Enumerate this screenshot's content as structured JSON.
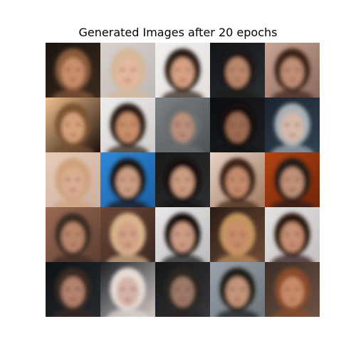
{
  "title": "Generated Images after 20 epochs",
  "grid": {
    "rows": 5,
    "cols": 5,
    "images": [
      {
        "bg": "#1a140f",
        "bg2": "#3a2a1e",
        "skin": "#c98f6c",
        "hair": "#8a5a3a"
      },
      {
        "bg": "#d8d2cf",
        "bg2": "#bfb7b4",
        "skin": "#e4b89d",
        "hair": "#d6b89a"
      },
      {
        "bg": "#f2f0ef",
        "bg2": "#e2dfde",
        "skin": "#d7a083",
        "hair": "#2b1a12"
      },
      {
        "bg": "#121416",
        "bg2": "#2a2f34",
        "skin": "#b9876c",
        "hair": "#1e1714"
      },
      {
        "bg": "#c9a594",
        "bg2": "#8b6a5e",
        "skin": "#c08e73",
        "hair": "#3a2418"
      },
      {
        "bg": "#f1c08f",
        "bg2": "#1b0f0a",
        "skin": "#d6a07a",
        "hair": "#7b5233"
      },
      {
        "bg": "#ededec",
        "bg2": "#cfcccc",
        "skin": "#c98f6c",
        "hair": "#2a1a12"
      },
      {
        "bg": "#7f8386",
        "bg2": "#4d5256",
        "skin": "#b98f7a",
        "hair": "#6c6e70"
      },
      {
        "bg": "#0c0d10",
        "bg2": "#1d1f23",
        "skin": "#9c6a51",
        "hair": "#15100d"
      },
      {
        "bg": "#1a2430",
        "bg2": "#31404f",
        "skin": "#d5b9a7",
        "hair": "#a9b1b6"
      },
      {
        "bg": "#e7cbb7",
        "bg2": "#c9b0a0",
        "skin": "#d9ad91",
        "hair": "#cfa27d"
      },
      {
        "bg": "#2f89d8",
        "bg2": "#1b5fa2",
        "skin": "#cc9d83",
        "hair": "#1a1414"
      },
      {
        "bg": "#181818",
        "bg2": "#2e2e2e",
        "skin": "#cb9b80",
        "hair": "#141010"
      },
      {
        "bg": "#e7d3c5",
        "bg2": "#a17a61",
        "skin": "#c48a6c",
        "hair": "#3a2316"
      },
      {
        "bg": "#b44314",
        "bg2": "#6f2609",
        "skin": "#c09077",
        "hair": "#241a18"
      },
      {
        "bg": "#9a6a53",
        "bg2": "#5e4032",
        "skin": "#b9866a",
        "hair": "#3a2a22"
      },
      {
        "bg": "#6b4637",
        "bg2": "#3b2820",
        "skin": "#d2a186",
        "hair": "#d9b38c"
      },
      {
        "bg": "#e9e7e7",
        "bg2": "#bcbaba",
        "skin": "#cc9b83",
        "hair": "#121010"
      },
      {
        "bg": "#2a1b14",
        "bg2": "#6e4a36",
        "skin": "#c78d6a",
        "hair": "#c4955f"
      },
      {
        "bg": "#e4e1e1",
        "bg2": "#c4c1c1",
        "skin": "#c78f72",
        "hair": "#2a1510"
      },
      {
        "bg": "#0f1114",
        "bg2": "#262a30",
        "skin": "#b2826c",
        "hair": "#3a2a22"
      },
      {
        "bg": "#1b1e24",
        "bg2": "#cfc8c4",
        "skin": "#d4b3a6",
        "hair": "#e6dcd6"
      },
      {
        "bg": "#151516",
        "bg2": "#35373a",
        "skin": "#9d7866",
        "hair": "#2a2522"
      },
      {
        "bg": "#9aa3ab",
        "bg2": "#6c757c",
        "skin": "#c39479",
        "hair": "#1e1a18"
      },
      {
        "bg": "#3a2c26",
        "bg2": "#6e5446",
        "skin": "#c88b69",
        "hair": "#8a4b2a"
      }
    ]
  }
}
